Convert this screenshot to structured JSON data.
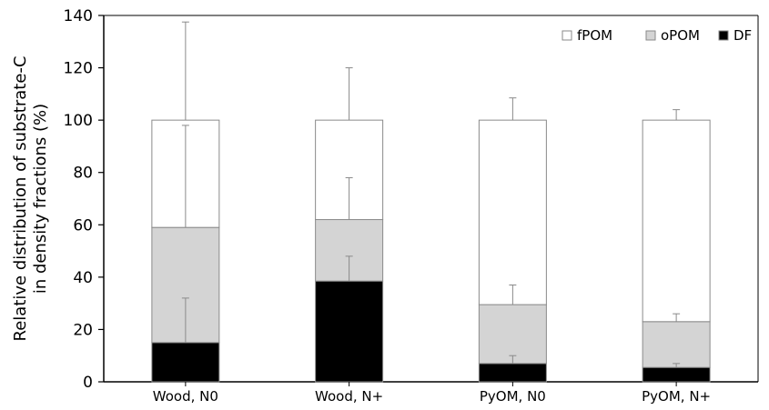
{
  "chart_data": {
    "type": "bar",
    "stacked": true,
    "categories": [
      "Wood, N0",
      "Wood, N+",
      "PyOM, N0",
      "PyOM, N+"
    ],
    "series": [
      {
        "name": "DF",
        "color": "#000000",
        "values": [
          15,
          38.5,
          7,
          5.5
        ],
        "error_upper": [
          32,
          48,
          10,
          7
        ]
      },
      {
        "name": "oPOM",
        "color": "#d4d4d4",
        "values": [
          44,
          23.5,
          22.5,
          17.5
        ],
        "error_upper": [
          98,
          78,
          37,
          26
        ]
      },
      {
        "name": "fPOM",
        "color": "#ffffff",
        "values": [
          41,
          38,
          70.5,
          77
        ],
        "error_upper": [
          137.5,
          120,
          108.5,
          104
        ]
      }
    ],
    "legend_order": [
      "fPOM",
      "oPOM",
      "DF"
    ],
    "legend_position": "top-right",
    "ylabel_lines": [
      "Relative distribution of substrate-C",
      "in density fractions (%)"
    ],
    "xlabel": "",
    "ylim": [
      0,
      140
    ],
    "yticks": [
      0,
      20,
      40,
      60,
      80,
      100,
      120,
      140
    ],
    "grid": false
  }
}
